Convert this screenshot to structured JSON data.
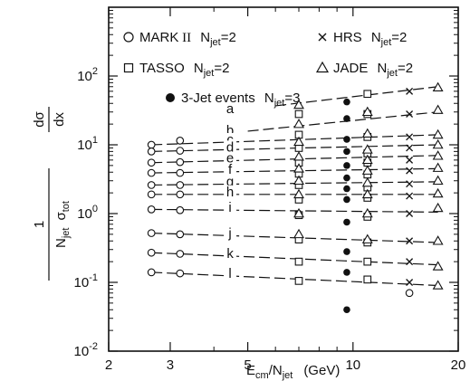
{
  "chart_data": {
    "type": "scatter",
    "xlabel": {
      "main": "E",
      "sub": "cm",
      "rest": "/N",
      "sub2": "jet",
      "unit": "(GeV)"
    },
    "ylabel": {
      "num": "1",
      "den_main": "N",
      "den_sub": "jet",
      "den_sigma": "σ",
      "den_sigma_sub": "tot",
      "frac_num": "dσ",
      "frac_den": "dx"
    },
    "x_scale": "log",
    "y_scale": "log",
    "xlim": [
      2,
      20
    ],
    "ylim": [
      0.01,
      1000
    ],
    "x_ticks": [
      {
        "value": 2,
        "label": "2"
      },
      {
        "value": 3,
        "label": "3"
      },
      {
        "value": 5,
        "label": "5"
      },
      {
        "value": 10,
        "label": "10"
      },
      {
        "value": 20,
        "label": "20"
      }
    ],
    "y_ticks": [
      {
        "value": 0.01,
        "base": "10",
        "exp": "-2"
      },
      {
        "value": 0.1,
        "base": "10",
        "exp": "-1"
      },
      {
        "value": 1,
        "base": "10",
        "exp": "0"
      },
      {
        "value": 10,
        "base": "10",
        "exp": "1"
      },
      {
        "value": 100,
        "base": "10",
        "exp": "2"
      }
    ],
    "legend": [
      {
        "symbol": "circle-open",
        "name": "MARK",
        "roman": "II",
        "text": "N",
        "sub": "jet",
        "tail": "=2"
      },
      {
        "symbol": "cross",
        "name": "HRS",
        "roman": "",
        "text": "N",
        "sub": "jet",
        "tail": "=2"
      },
      {
        "symbol": "square-open",
        "name": "TASSO",
        "roman": "",
        "text": "N",
        "sub": "jet",
        "tail": "=2"
      },
      {
        "symbol": "triangle-open",
        "name": "JADE",
        "roman": "",
        "text": "N",
        "sub": "jet",
        "tail": "=2"
      },
      {
        "symbol": "circle-filled",
        "name": "3-Jet events",
        "roman": "",
        "text": "N",
        "sub": "jet",
        "tail": "=3"
      }
    ],
    "series": [
      {
        "label": "a",
        "y_start": null,
        "y_end": 70,
        "line_x": [
          6.0,
          17.5
        ]
      },
      {
        "label": "b",
        "y_start": null,
        "y_end": 30,
        "line_x": [
          5.0,
          17.5
        ]
      },
      {
        "label": "c",
        "y_start": 10,
        "y_end": 14,
        "line_x": [
          2.65,
          17.5
        ]
      },
      {
        "label": "d",
        "y_start": 8.0,
        "y_end": 10,
        "line_x": [
          2.65,
          17.5
        ]
      },
      {
        "label": "e",
        "y_start": 5.5,
        "y_end": 7,
        "line_x": [
          2.65,
          17.5
        ]
      },
      {
        "label": "f",
        "y_start": 3.9,
        "y_end": 4.5,
        "line_x": [
          2.65,
          17.5
        ]
      },
      {
        "label": "g",
        "y_start": 2.6,
        "y_end": 2.9,
        "line_x": [
          2.65,
          17.5
        ]
      },
      {
        "label": "h",
        "y_start": 1.9,
        "y_end": 1.9,
        "line_x": [
          2.65,
          17.5
        ]
      },
      {
        "label": "i",
        "y_start": 1.15,
        "y_end": 1.05,
        "line_x": [
          2.65,
          17.5
        ]
      },
      {
        "label": "j",
        "y_start": 0.52,
        "y_end": 0.38,
        "line_x": [
          2.65,
          17.5
        ]
      },
      {
        "label": "k",
        "y_start": 0.27,
        "y_end": 0.18,
        "line_x": [
          2.65,
          17.5
        ]
      },
      {
        "label": "l",
        "y_start": 0.14,
        "y_end": 0.09,
        "line_x": [
          2.65,
          17.5
        ]
      }
    ],
    "points": {
      "mark2": [
        [
          2.65,
          10
        ],
        [
          2.65,
          8.0
        ],
        [
          2.65,
          5.5
        ],
        [
          2.65,
          3.9
        ],
        [
          2.65,
          2.6
        ],
        [
          2.65,
          1.9
        ],
        [
          2.65,
          1.15
        ],
        [
          2.65,
          0.52
        ],
        [
          2.65,
          0.27
        ],
        [
          2.65,
          0.14
        ],
        [
          3.2,
          11.5
        ],
        [
          3.2,
          8.2
        ],
        [
          3.2,
          5.6
        ],
        [
          3.2,
          3.9
        ],
        [
          3.2,
          2.6
        ],
        [
          3.2,
          1.9
        ],
        [
          3.2,
          1.12
        ],
        [
          3.2,
          0.5
        ],
        [
          3.2,
          0.26
        ],
        [
          3.2,
          0.135
        ],
        [
          14.5,
          0.07
        ]
      ],
      "hrs": [
        [
          14.5,
          60
        ],
        [
          14.5,
          28
        ],
        [
          14.5,
          13
        ],
        [
          14.5,
          9
        ],
        [
          14.5,
          6
        ],
        [
          14.5,
          4.2
        ],
        [
          14.5,
          2.7
        ],
        [
          14.5,
          1.8
        ],
        [
          14.5,
          1.0
        ],
        [
          14.5,
          0.4
        ],
        [
          14.5,
          0.2
        ],
        [
          14.5,
          0.1
        ]
      ],
      "tasso": [
        [
          7.0,
          28
        ],
        [
          7.0,
          14
        ],
        [
          7.0,
          9
        ],
        [
          7.0,
          5.5
        ],
        [
          7.0,
          3.8
        ],
        [
          7.0,
          2.6
        ],
        [
          7.0,
          1.6
        ],
        [
          7.0,
          0.95
        ],
        [
          7.0,
          0.42
        ],
        [
          7.0,
          0.2
        ],
        [
          7.0,
          0.105
        ],
        [
          11.0,
          55
        ],
        [
          11.0,
          28
        ],
        [
          11.0,
          13
        ],
        [
          11.0,
          7.5
        ],
        [
          11.0,
          5.5
        ],
        [
          11.0,
          3.7
        ],
        [
          11.0,
          2.4
        ],
        [
          11.0,
          1.7
        ],
        [
          11.0,
          0.9
        ],
        [
          11.0,
          0.38
        ],
        [
          11.0,
          0.2
        ],
        [
          11.0,
          0.11
        ]
      ],
      "jade": [
        [
          7.0,
          38
        ],
        [
          7.0,
          20
        ],
        [
          7.0,
          11
        ],
        [
          7.0,
          6.7
        ],
        [
          7.0,
          4.5
        ],
        [
          7.0,
          3.0
        ],
        [
          7.0,
          1.9
        ],
        [
          7.0,
          1.0
        ],
        [
          7.0,
          0.5
        ],
        [
          11.0,
          30
        ],
        [
          11.0,
          14.5
        ],
        [
          11.0,
          8.5
        ],
        [
          11.0,
          6.0
        ],
        [
          11.0,
          4.2
        ],
        [
          11.0,
          2.8
        ],
        [
          11.0,
          1.9
        ],
        [
          11.0,
          1.0
        ],
        [
          11.0,
          0.42
        ],
        [
          17.5,
          68
        ],
        [
          17.5,
          32
        ],
        [
          17.5,
          14
        ],
        [
          17.5,
          10
        ],
        [
          17.5,
          6.9
        ],
        [
          17.5,
          4.6
        ],
        [
          17.5,
          3.0
        ],
        [
          17.5,
          1.95
        ],
        [
          17.5,
          1.2
        ],
        [
          17.5,
          0.4
        ],
        [
          17.5,
          0.17
        ],
        [
          17.5,
          0.09
        ]
      ],
      "three_jet": [
        [
          9.6,
          42
        ],
        [
          9.6,
          24
        ],
        [
          9.6,
          12
        ],
        [
          9.6,
          8
        ],
        [
          9.6,
          5
        ],
        [
          9.6,
          3.3
        ],
        [
          9.6,
          2.3
        ],
        [
          9.6,
          1.6
        ],
        [
          9.6,
          0.75
        ],
        [
          9.6,
          0.28
        ],
        [
          9.6,
          0.14
        ],
        [
          9.6,
          0.04
        ]
      ]
    }
  }
}
